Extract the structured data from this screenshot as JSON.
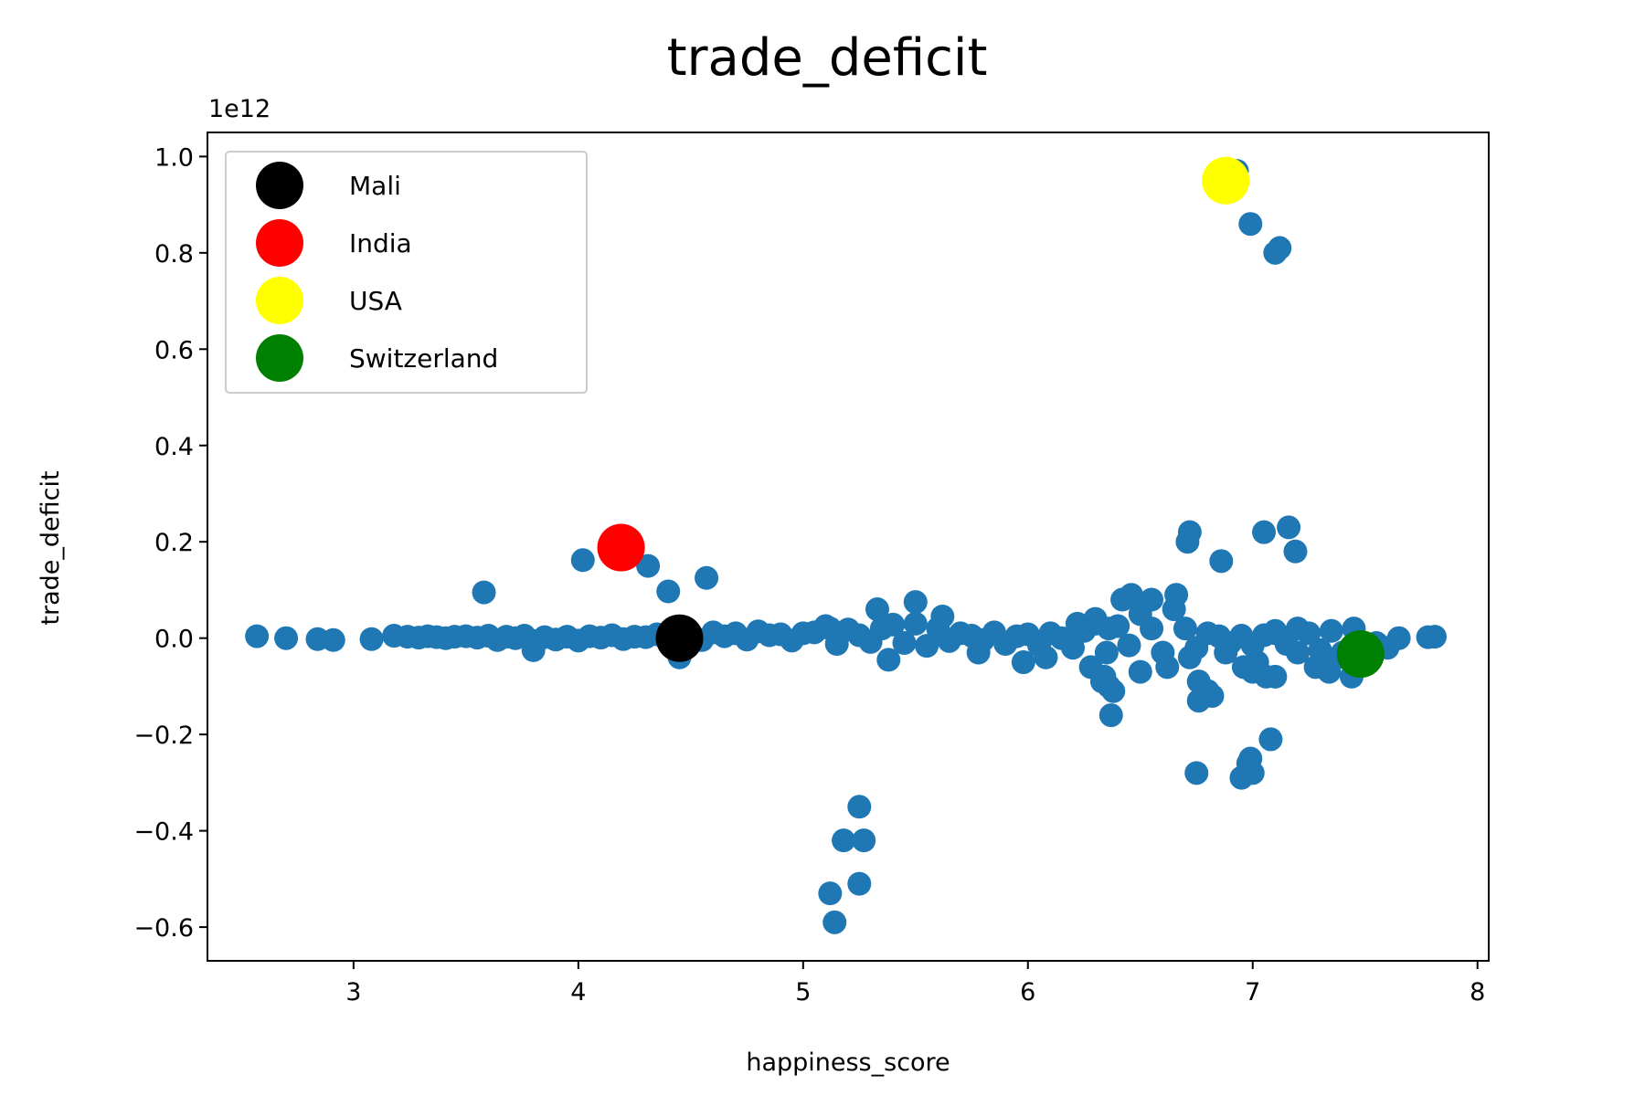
{
  "chart_data": {
    "type": "scatter",
    "title": "trade_deficit",
    "xlabel": "happiness_score",
    "ylabel": "trade_deficit",
    "y_offset_text": "1e12",
    "xlim": [
      2.35,
      8.05
    ],
    "ylim": [
      -0.67,
      1.05
    ],
    "x_ticks": [
      3,
      4,
      5,
      6,
      7,
      8
    ],
    "y_ticks": [
      -0.6,
      -0.4,
      -0.2,
      0.0,
      0.2,
      0.4,
      0.6,
      0.8,
      1.0
    ],
    "x_tick_labels": [
      "3",
      "4",
      "5",
      "6",
      "7",
      "8"
    ],
    "y_tick_labels": [
      "−0.6",
      "−0.4",
      "−0.2",
      "0.0",
      "0.2",
      "0.4",
      "0.6",
      "0.8",
      "1.0"
    ],
    "grid": false,
    "legend_position": "top-left",
    "base_color": "#1f77b4",
    "series": [
      {
        "x": [
          2.57,
          2.7,
          2.84,
          2.91,
          3.08,
          3.18,
          3.24,
          3.29,
          3.33,
          3.37,
          3.41,
          3.45,
          3.5,
          3.55,
          3.6,
          3.64,
          3.68,
          3.72,
          3.76,
          3.8,
          3.85,
          3.9,
          3.95,
          4.0,
          4.05,
          4.1,
          4.15,
          4.2,
          4.25,
          4.3,
          4.35,
          4.4,
          4.5,
          4.55,
          4.6,
          4.65,
          4.7,
          4.75,
          4.8,
          4.85,
          4.9,
          4.95,
          5.0,
          5.05,
          5.1,
          5.15,
          5.2,
          5.25,
          5.3,
          5.35,
          5.4,
          5.45,
          5.5,
          5.55,
          5.6,
          5.65,
          5.7,
          5.75,
          5.8,
          5.85,
          5.9,
          5.95,
          6.0,
          6.05,
          6.1,
          6.15,
          6.2,
          6.25,
          6.3,
          6.35,
          6.4,
          6.45,
          6.5,
          6.55,
          6.6,
          6.65,
          6.7,
          6.75,
          6.8,
          6.85,
          6.9,
          6.95,
          7.0,
          7.05,
          7.1,
          7.15,
          7.2,
          7.25,
          7.3,
          7.35,
          7.4,
          7.45,
          7.5,
          7.55,
          7.6,
          7.65,
          7.78,
          7.81,
          3.58,
          4.02,
          4.31,
          4.4,
          4.57,
          3.8,
          4.45,
          5.12,
          5.33,
          5.38,
          5.5,
          5.62,
          5.78,
          5.98,
          6.08,
          6.22,
          6.28,
          6.3,
          6.33,
          6.36,
          6.38,
          6.42,
          6.46,
          6.5,
          6.55,
          6.62,
          6.66,
          6.72,
          6.76,
          6.8,
          6.88,
          6.96,
          7.02,
          7.06,
          7.1,
          7.2,
          7.28,
          7.34,
          7.38,
          7.44,
          6.93,
          6.99,
          7.1,
          7.12,
          6.72,
          6.71,
          7.05,
          7.16,
          7.19,
          6.86,
          6.75,
          6.95,
          6.98,
          6.99,
          7.0,
          7.08,
          6.37,
          6.36,
          6.34,
          6.76,
          6.82,
          7.0,
          7.1,
          5.25,
          5.18,
          5.27,
          5.25,
          5.12,
          5.14
        ],
        "y": [
          0.004,
          0.0,
          -0.002,
          -0.004,
          -0.002,
          0.005,
          0.003,
          0.001,
          0.004,
          0.002,
          0.0,
          0.003,
          0.004,
          0.001,
          0.005,
          -0.004,
          0.003,
          0.0,
          0.005,
          -0.006,
          0.002,
          -0.003,
          0.003,
          -0.005,
          0.004,
          0.001,
          0.006,
          -0.002,
          0.003,
          0.002,
          0.008,
          0.0,
          0.009,
          -0.004,
          0.012,
          0.004,
          0.01,
          -0.003,
          0.014,
          0.006,
          0.008,
          -0.005,
          0.01,
          0.012,
          0.025,
          -0.012,
          0.018,
          0.006,
          -0.008,
          0.02,
          0.028,
          -0.01,
          0.03,
          -0.016,
          0.02,
          -0.006,
          0.01,
          0.005,
          -0.004,
          0.012,
          -0.012,
          0.004,
          0.008,
          -0.015,
          0.01,
          0.0,
          -0.02,
          0.015,
          0.03,
          -0.03,
          0.025,
          -0.015,
          0.05,
          0.02,
          -0.03,
          0.06,
          0.02,
          -0.02,
          0.01,
          0.004,
          -0.01,
          0.005,
          -0.015,
          0.006,
          0.015,
          -0.012,
          0.02,
          0.01,
          -0.025,
          0.015,
          -0.03,
          0.02,
          -0.04,
          -0.01,
          -0.02,
          0.0,
          0.002,
          0.003,
          0.095,
          0.162,
          0.15,
          0.097,
          0.125,
          -0.025,
          -0.04,
          0.02,
          0.06,
          -0.045,
          0.075,
          0.045,
          -0.03,
          -0.05,
          -0.04,
          0.03,
          -0.06,
          0.04,
          -0.09,
          0.02,
          -0.11,
          0.08,
          0.09,
          -0.07,
          0.08,
          -0.06,
          0.09,
          -0.04,
          -0.13,
          -0.11,
          -0.03,
          -0.06,
          -0.05,
          -0.08,
          0.01,
          -0.03,
          -0.06,
          -0.07,
          -0.04,
          -0.08,
          0.97,
          0.86,
          0.8,
          0.81,
          0.22,
          0.2,
          0.22,
          0.23,
          0.18,
          0.16,
          -0.28,
          -0.29,
          -0.26,
          -0.25,
          -0.28,
          -0.21,
          -0.16,
          -0.1,
          -0.08,
          -0.09,
          -0.12,
          -0.07,
          -0.08,
          -0.35,
          -0.42,
          -0.42,
          -0.51,
          -0.53,
          -0.59
        ]
      }
    ],
    "highlights": [
      {
        "name": "Mali",
        "color": "#000000",
        "x": 4.45,
        "y": 0.0
      },
      {
        "name": "India",
        "color": "#ff0000",
        "x": 4.19,
        "y": 0.188
      },
      {
        "name": "USA",
        "color": "#ffff00",
        "x": 6.88,
        "y": 0.95
      },
      {
        "name": "Switzerland",
        "color": "#008000",
        "x": 7.48,
        "y": -0.033
      }
    ]
  }
}
